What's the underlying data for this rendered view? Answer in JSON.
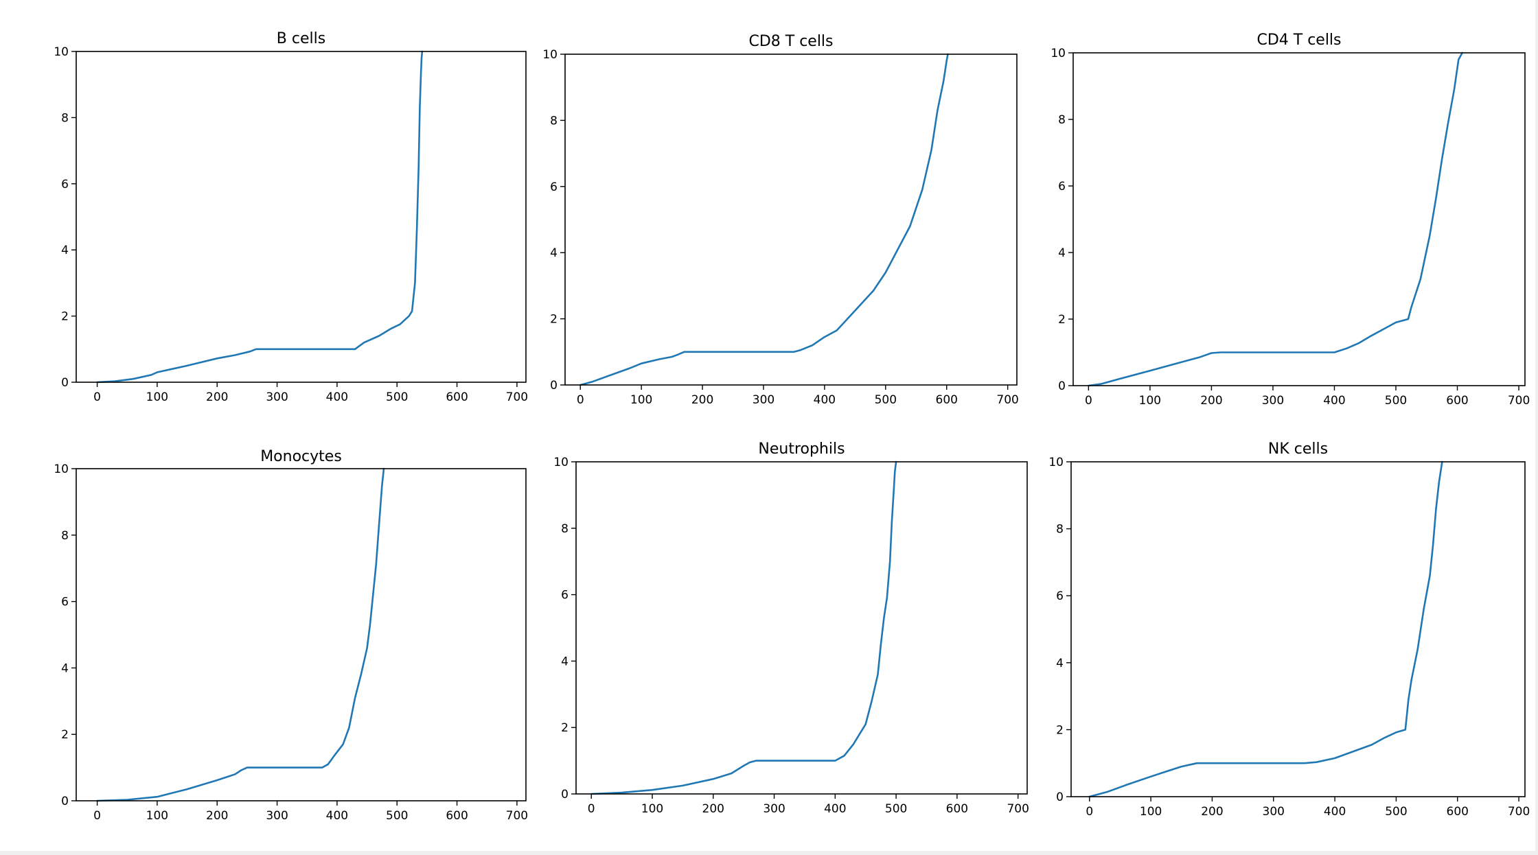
{
  "figure": {
    "line_color": "#1f77b4",
    "background": "#ffffff"
  },
  "chart_data": [
    {
      "type": "line",
      "title": "B cells",
      "xlabel": "",
      "ylabel": "",
      "xlim": [
        -35,
        715
      ],
      "ylim": [
        0,
        10
      ],
      "xticks": [
        0,
        100,
        200,
        300,
        400,
        500,
        600,
        700
      ],
      "yticks": [
        0,
        2,
        4,
        6,
        8,
        10
      ],
      "grid": false,
      "series": [
        {
          "x": [
            0,
            30,
            60,
            90,
            100,
            150,
            200,
            230,
            255,
            265,
            300,
            350,
            400,
            430,
            445,
            470,
            490,
            505,
            520,
            525,
            530,
            533,
            536,
            538,
            540,
            541,
            542
          ],
          "y": [
            0,
            0.03,
            0.1,
            0.22,
            0.3,
            0.5,
            0.72,
            0.82,
            0.93,
            1,
            1,
            1,
            1,
            1,
            1.2,
            1.4,
            1.62,
            1.75,
            2,
            2.15,
            3,
            4.6,
            6.5,
            8.3,
            9.4,
            9.8,
            10
          ]
        }
      ]
    },
    {
      "type": "line",
      "title": "CD8 T cells",
      "xlabel": "",
      "ylabel": "",
      "xlim": [
        -25,
        715
      ],
      "ylim": [
        0,
        10
      ],
      "xticks": [
        0,
        100,
        200,
        300,
        400,
        500,
        600,
        700
      ],
      "yticks": [
        0,
        2,
        4,
        6,
        8,
        10
      ],
      "grid": false,
      "series": [
        {
          "x": [
            0,
            20,
            50,
            80,
            100,
            130,
            150,
            160,
            170,
            200,
            250,
            300,
            350,
            360,
            380,
            400,
            420,
            440,
            460,
            480,
            500,
            520,
            540,
            560,
            575,
            585,
            595,
            600,
            602
          ],
          "y": [
            0,
            0.1,
            0.3,
            0.5,
            0.65,
            0.78,
            0.85,
            0.92,
            1,
            1,
            1,
            1,
            1,
            1.05,
            1.2,
            1.45,
            1.65,
            2.05,
            2.45,
            2.85,
            3.4,
            4.1,
            4.8,
            5.9,
            7.1,
            8.3,
            9.2,
            9.8,
            10
          ]
        }
      ]
    },
    {
      "type": "line",
      "title": "CD4 T cells",
      "xlabel": "",
      "ylabel": "",
      "xlim": [
        -25,
        710
      ],
      "ylim": [
        0,
        10
      ],
      "xticks": [
        0,
        100,
        200,
        300,
        400,
        500,
        600,
        700
      ],
      "yticks": [
        0,
        2,
        4,
        6,
        8,
        10
      ],
      "grid": false,
      "series": [
        {
          "x": [
            0,
            20,
            50,
            100,
            150,
            180,
            200,
            215,
            250,
            300,
            350,
            400,
            420,
            440,
            460,
            480,
            500,
            520,
            525,
            540,
            555,
            565,
            575,
            585,
            595,
            602,
            608
          ],
          "y": [
            0,
            0.05,
            0.2,
            0.45,
            0.7,
            0.85,
            0.98,
            1,
            1,
            1,
            1,
            1,
            1.12,
            1.28,
            1.5,
            1.7,
            1.9,
            2,
            2.35,
            3.2,
            4.5,
            5.6,
            6.8,
            7.9,
            8.9,
            9.8,
            10
          ]
        }
      ]
    },
    {
      "type": "line",
      "title": "Monocytes",
      "xlabel": "",
      "ylabel": "",
      "xlim": [
        -35,
        715
      ],
      "ylim": [
        0,
        10
      ],
      "xticks": [
        0,
        100,
        200,
        300,
        400,
        500,
        600,
        700
      ],
      "yticks": [
        0,
        2,
        4,
        6,
        8,
        10
      ],
      "grid": false,
      "series": [
        {
          "x": [
            0,
            50,
            100,
            150,
            200,
            230,
            240,
            250,
            300,
            350,
            375,
            385,
            395,
            410,
            420,
            430,
            440,
            450,
            455,
            460,
            465,
            470,
            475,
            478
          ],
          "y": [
            0,
            0.03,
            0.12,
            0.35,
            0.62,
            0.8,
            0.92,
            1,
            1,
            1,
            1,
            1.1,
            1.35,
            1.7,
            2.2,
            3.1,
            3.8,
            4.6,
            5.3,
            6.2,
            7.1,
            8.3,
            9.5,
            10
          ]
        }
      ]
    },
    {
      "type": "line",
      "title": "Neutrophils",
      "xlabel": "",
      "ylabel": "",
      "xlim": [
        -25,
        715
      ],
      "ylim": [
        0,
        10
      ],
      "xticks": [
        0,
        100,
        200,
        300,
        400,
        500,
        600,
        700
      ],
      "yticks": [
        0,
        2,
        4,
        6,
        8,
        10
      ],
      "grid": false,
      "series": [
        {
          "x": [
            0,
            50,
            100,
            150,
            200,
            230,
            250,
            260,
            270,
            300,
            350,
            400,
            415,
            430,
            440,
            450,
            460,
            470,
            475,
            480,
            485,
            490,
            493,
            496,
            498,
            500
          ],
          "y": [
            0,
            0.04,
            0.12,
            0.25,
            0.45,
            0.62,
            0.85,
            0.95,
            1,
            1,
            1,
            1,
            1.15,
            1.5,
            1.8,
            2.1,
            2.8,
            3.6,
            4.5,
            5.3,
            5.9,
            7,
            8.2,
            9.1,
            9.7,
            10
          ]
        }
      ]
    },
    {
      "type": "line",
      "title": "NK cells",
      "xlabel": "",
      "ylabel": "",
      "xlim": [
        -30,
        710
      ],
      "ylim": [
        0,
        10
      ],
      "xticks": [
        0,
        100,
        200,
        300,
        400,
        500,
        600,
        700
      ],
      "yticks": [
        0,
        2,
        4,
        6,
        8,
        10
      ],
      "grid": false,
      "series": [
        {
          "x": [
            0,
            30,
            60,
            100,
            130,
            150,
            170,
            175,
            200,
            250,
            300,
            350,
            370,
            400,
            430,
            460,
            480,
            500,
            515,
            520,
            525,
            535,
            545,
            555,
            560,
            565,
            570,
            575
          ],
          "y": [
            0,
            0.15,
            0.35,
            0.6,
            0.78,
            0.9,
            0.98,
            1,
            1,
            1,
            1,
            1,
            1.03,
            1.15,
            1.35,
            1.55,
            1.75,
            1.92,
            2,
            2.9,
            3.5,
            4.4,
            5.6,
            6.6,
            7.5,
            8.6,
            9.4,
            10
          ]
        }
      ]
    }
  ]
}
